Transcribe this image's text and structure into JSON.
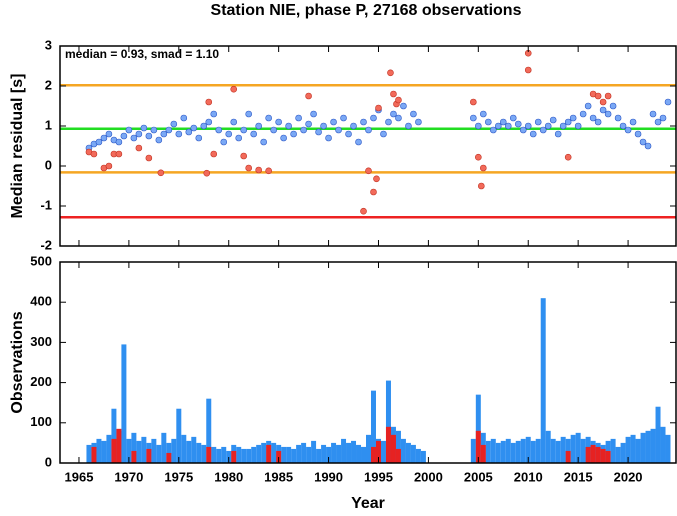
{
  "chart_data": [
    {
      "type": "scatter",
      "title": "Station NIE, phase P, 27168 observations",
      "ylabel": "Median residual [s]",
      "annotation": "median = 0.93, smad = 1.10",
      "xlim": [
        1963.1,
        2024.8
      ],
      "xticks": [
        1965,
        1970,
        1975,
        1980,
        1985,
        1990,
        1995,
        2000,
        2005,
        2010,
        2015,
        2020
      ],
      "ylim": [
        -2,
        3
      ],
      "yticks": [
        -2,
        -1,
        0,
        1,
        2,
        3
      ],
      "reference_lines": [
        {
          "value": 2.02,
          "color": "#f5a623"
        },
        {
          "value": 0.93,
          "color": "#22dd22"
        },
        {
          "value": -0.16,
          "color": "#f5a623"
        },
        {
          "value": -1.28,
          "color": "#ee2222"
        }
      ],
      "series": [
        {
          "color": "#7aa8f5",
          "x": [
            1966.0,
            1966.5,
            1967,
            1967.5,
            1968,
            1968.5,
            1969,
            1969.5,
            1970,
            1970.5,
            1971,
            1971.5,
            1972,
            1972.5,
            1973,
            1973.5,
            1974,
            1974.5,
            1975,
            1975.5,
            1976,
            1976.5,
            1977,
            1977.5,
            1978,
            1978.5,
            1979,
            1979.5,
            1980,
            1980.5,
            1981,
            1981.5,
            1982,
            1982.5,
            1983,
            1983.5,
            1984,
            1984.5,
            1985,
            1985.5,
            1986,
            1986.5,
            1987,
            1987.5,
            1988,
            1988.5,
            1989,
            1989.5,
            1990,
            1990.5,
            1991,
            1991.5,
            1992,
            1992.5,
            1993,
            1993.5,
            1994,
            1994.5,
            1995,
            1995.5,
            1996,
            1996.5,
            1997,
            1997.5,
            1998,
            1998.5,
            1999,
            2004.5,
            2005,
            2005.5,
            2006,
            2006.5,
            2007,
            2007.5,
            2008,
            2008.5,
            2009,
            2009.5,
            2010,
            2010.5,
            2011,
            2011.5,
            2012,
            2012.5,
            2013,
            2013.5,
            2014,
            2014.5,
            2015,
            2015.5,
            2016,
            2016.5,
            2017,
            2017.5,
            2018,
            2018.5,
            2019,
            2019.5,
            2020,
            2020.5,
            2021,
            2021.5,
            2022,
            2022.5,
            2023,
            2023.5,
            2024
          ],
          "values": [
            0.45,
            0.55,
            0.6,
            0.7,
            0.8,
            0.65,
            0.6,
            0.75,
            0.9,
            0.7,
            0.8,
            0.95,
            0.75,
            0.9,
            0.65,
            0.8,
            0.9,
            1.05,
            0.8,
            1.2,
            0.85,
            0.95,
            0.7,
            1.0,
            1.1,
            1.3,
            0.9,
            0.6,
            0.8,
            1.1,
            0.7,
            0.9,
            1.3,
            0.8,
            1.0,
            0.6,
            1.2,
            0.9,
            1.1,
            0.7,
            1.0,
            0.8,
            1.2,
            0.9,
            1.05,
            1.3,
            0.85,
            1.0,
            0.7,
            1.1,
            0.9,
            1.2,
            0.8,
            1.0,
            0.6,
            1.1,
            0.9,
            1.2,
            1.4,
            0.8,
            1.1,
            1.3,
            1.2,
            1.5,
            1.0,
            1.3,
            1.1,
            1.2,
            1.0,
            1.3,
            1.1,
            0.9,
            1.0,
            1.1,
            1.0,
            1.2,
            1.05,
            0.9,
            1.0,
            0.8,
            1.1,
            0.9,
            1.0,
            1.15,
            0.8,
            1.0,
            1.1,
            1.2,
            1.0,
            1.3,
            1.5,
            1.2,
            1.1,
            1.4,
            1.3,
            1.5,
            1.2,
            1.0,
            0.9,
            1.1,
            0.8,
            0.6,
            0.5,
            1.3,
            1.1,
            1.2,
            1.6
          ]
        },
        {
          "color": "#f26a5a",
          "x": [
            1966,
            1966.5,
            1967.5,
            1968,
            1968.5,
            1969,
            1971,
            1972,
            1973.2,
            1977.8,
            1978,
            1978.5,
            1980.5,
            1981.5,
            1982,
            1983,
            1984,
            1988,
            1993.5,
            1994,
            1994.5,
            1994.8,
            1995,
            1996.2,
            1996.5,
            1996.8,
            1997,
            2004.5,
            2005,
            2005.3,
            2005.5,
            2010,
            2010,
            2014,
            2016.5,
            2017,
            2017.5,
            2018
          ],
          "values": [
            0.35,
            0.3,
            -0.05,
            0.0,
            0.3,
            0.3,
            0.45,
            0.2,
            -0.17,
            -0.18,
            1.6,
            0.3,
            1.92,
            0.25,
            -0.05,
            -0.1,
            -0.12,
            1.75,
            -1.13,
            -0.12,
            -0.65,
            -0.32,
            1.45,
            2.33,
            1.8,
            1.55,
            1.65,
            1.6,
            0.22,
            -0.5,
            -0.05,
            2.82,
            2.4,
            0.22,
            1.8,
            1.75,
            1.6,
            1.75
          ]
        }
      ]
    },
    {
      "type": "bar",
      "xlabel": "Year",
      "ylabel": "Observations",
      "xlim": [
        1963.1,
        2024.8
      ],
      "xticks": [
        1965,
        1970,
        1975,
        1980,
        1985,
        1990,
        1995,
        2000,
        2005,
        2010,
        2015,
        2020
      ],
      "ylim": [
        0,
        500
      ],
      "yticks": [
        0,
        100,
        200,
        300,
        400,
        500
      ],
      "series": [
        {
          "color": "#2f8ff0",
          "x": [
            1966,
            1966.5,
            1967,
            1967.5,
            1968,
            1968.5,
            1969,
            1969.5,
            1970,
            1970.5,
            1971,
            1971.5,
            1972,
            1972.5,
            1973,
            1973.5,
            1974,
            1974.5,
            1975,
            1975.5,
            1976,
            1976.5,
            1977,
            1977.5,
            1978,
            1978.5,
            1979,
            1979.5,
            1980,
            1980.5,
            1981,
            1981.5,
            1982,
            1982.5,
            1983,
            1983.5,
            1984,
            1984.5,
            1985,
            1985.5,
            1986,
            1986.5,
            1987,
            1987.5,
            1988,
            1988.5,
            1989,
            1989.5,
            1990,
            1990.5,
            1991,
            1991.5,
            1992,
            1992.5,
            1993,
            1993.5,
            1994,
            1994.5,
            1995,
            1995.5,
            1996,
            1996.5,
            1997,
            1997.5,
            1998,
            1998.5,
            1999,
            1999.5,
            2004.5,
            2005,
            2005.5,
            2006,
            2006.5,
            2007,
            2007.5,
            2008,
            2008.5,
            2009,
            2009.5,
            2010,
            2010.5,
            2011,
            2011.5,
            2012,
            2012.5,
            2013,
            2013.5,
            2014,
            2014.5,
            2015,
            2015.5,
            2016,
            2016.5,
            2017,
            2017.5,
            2018,
            2018.5,
            2019,
            2019.5,
            2020,
            2020.5,
            2021,
            2021.5,
            2022,
            2022.5,
            2023,
            2023.5,
            2024
          ],
          "values": [
            45,
            50,
            60,
            55,
            70,
            135,
            80,
            295,
            60,
            75,
            55,
            65,
            50,
            60,
            45,
            75,
            50,
            60,
            135,
            70,
            55,
            65,
            50,
            45,
            160,
            40,
            35,
            40,
            30,
            45,
            40,
            35,
            35,
            40,
            45,
            50,
            55,
            50,
            45,
            40,
            40,
            35,
            45,
            50,
            40,
            55,
            35,
            45,
            40,
            50,
            45,
            60,
            50,
            55,
            45,
            40,
            70,
            180,
            60,
            55,
            205,
            90,
            80,
            60,
            50,
            45,
            35,
            30,
            60,
            170,
            75,
            55,
            60,
            50,
            55,
            60,
            50,
            55,
            60,
            65,
            55,
            60,
            410,
            80,
            60,
            55,
            65,
            60,
            70,
            75,
            60,
            65,
            55,
            50,
            45,
            55,
            60,
            40,
            50,
            65,
            70,
            60,
            75,
            80,
            85,
            140,
            90,
            70
          ]
        },
        {
          "color": "#e62222",
          "x": [
            1966.5,
            1968.5,
            1969,
            1970.5,
            1972,
            1974,
            1978,
            1980.5,
            1984,
            1985,
            1994.5,
            1995,
            1996,
            1996.5,
            1997,
            2005,
            2005.5,
            2014,
            2016,
            2016.5,
            2017,
            2017.5,
            2018
          ],
          "values": [
            40,
            60,
            85,
            30,
            35,
            25,
            40,
            30,
            45,
            30,
            40,
            55,
            90,
            70,
            35,
            80,
            45,
            30,
            40,
            45,
            40,
            35,
            30
          ]
        }
      ]
    }
  ]
}
